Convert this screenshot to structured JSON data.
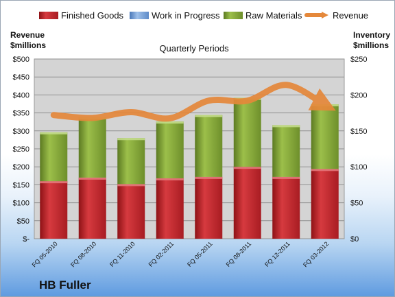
{
  "company": "HB Fuller",
  "chart_data": {
    "type": "bar",
    "stacked": true,
    "title": "Quarterly Periods",
    "categories": [
      "FQ 05-2010",
      "FQ 08-2010",
      "FQ 11-2010",
      "FQ 02-2011",
      "FQ 05-2011",
      "FQ 08-2011",
      "FQ 12-2011",
      "FQ 03-2012"
    ],
    "left_axis": {
      "label_line1": "Revenue",
      "label_line2": "$millions",
      "ylim": [
        0,
        500
      ],
      "ticks": [
        0,
        50,
        100,
        150,
        200,
        250,
        300,
        350,
        400,
        450,
        500
      ],
      "tick_labels": [
        "$-",
        "$50",
        "$100",
        "$150",
        "$200",
        "$250",
        "$300",
        "$350",
        "$400",
        "$450",
        "$500"
      ]
    },
    "right_axis": {
      "label_line1": "Inventory",
      "label_line2": "$millions",
      "ylim": [
        0,
        250
      ],
      "ticks": [
        0,
        50,
        100,
        150,
        200,
        250
      ],
      "tick_labels": [
        "$0",
        "$50",
        "$100",
        "$150",
        "$200",
        "$250"
      ]
    },
    "series": [
      {
        "name": "Finished Goods",
        "axis": "right",
        "kind": "bar",
        "color": "#c0272d",
        "values": [
          80,
          85,
          76,
          84,
          86,
          100,
          86,
          97
        ]
      },
      {
        "name": "Work in Progress",
        "axis": "right",
        "kind": "bar",
        "color": "#6f9bd6",
        "values": [
          0,
          0,
          0,
          0,
          0,
          0,
          0,
          0
        ]
      },
      {
        "name": "Raw Materials",
        "axis": "right",
        "kind": "bar",
        "color": "#86a93a",
        "values": [
          68,
          84,
          64,
          79,
          86,
          96,
          72,
          90
        ]
      },
      {
        "name": "Revenue",
        "axis": "left",
        "kind": "line",
        "color": "#e5883a",
        "values": [
          344,
          336,
          352,
          335,
          384,
          384,
          428,
          372
        ]
      }
    ],
    "grid": true,
    "legend_position": "top"
  }
}
